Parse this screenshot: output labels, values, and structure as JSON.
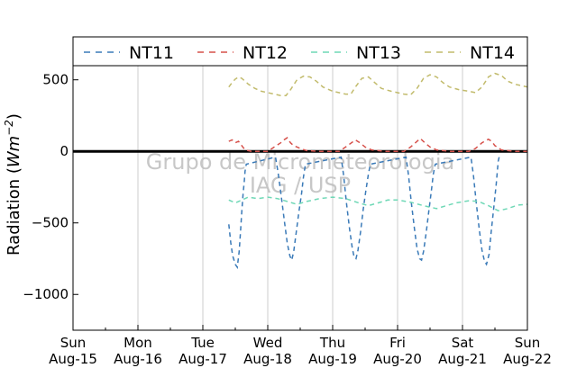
{
  "chart_data": {
    "type": "line",
    "ylabel_prefix": "Radiation (",
    "ylabel_unit": "Wm",
    "ylabel_exp": "−2",
    "ylabel_suffix": ")",
    "ylim": [
      -1250,
      800
    ],
    "xlim": [
      0,
      7
    ],
    "yticks": [
      {
        "value": 500,
        "label": "500"
      },
      {
        "value": 0,
        "label": "0"
      },
      {
        "value": -500,
        "label": "−500"
      },
      {
        "value": -1000,
        "label": "−1000"
      }
    ],
    "xticks": [
      {
        "value": 0,
        "day": "Sun",
        "date": "Aug-15"
      },
      {
        "value": 1,
        "day": "Mon",
        "date": "Aug-16"
      },
      {
        "value": 2,
        "day": "Tue",
        "date": "Aug-17"
      },
      {
        "value": 3,
        "day": "Wed",
        "date": "Aug-18"
      },
      {
        "value": 4,
        "day": "Thu",
        "date": "Aug-19"
      },
      {
        "value": 5,
        "day": "Fri",
        "date": "Aug-20"
      },
      {
        "value": 6,
        "day": "Sat",
        "date": "Aug-21"
      },
      {
        "value": 7,
        "day": "Sun",
        "date": "Aug-22"
      }
    ],
    "grid": "vertical",
    "zero_line": true,
    "legend_position": "top",
    "watermark": [
      "Grupo de Micrometeorologia",
      "IAG / USP"
    ],
    "series": [
      {
        "name": "NT11",
        "color": "#3a7ab8",
        "points": [
          [
            2.4,
            -510
          ],
          [
            2.43,
            -640
          ],
          [
            2.46,
            -730
          ],
          [
            2.5,
            -790
          ],
          [
            2.53,
            -810
          ],
          [
            2.56,
            -700
          ],
          [
            2.58,
            -560
          ],
          [
            2.6,
            -420
          ],
          [
            2.62,
            -300
          ],
          [
            2.64,
            -200
          ],
          [
            2.65,
            -140
          ],
          [
            2.67,
            -90
          ],
          [
            3.12,
            -40
          ],
          [
            3.16,
            -150
          ],
          [
            3.21,
            -320
          ],
          [
            3.26,
            -500
          ],
          [
            3.3,
            -640
          ],
          [
            3.34,
            -730
          ],
          [
            3.37,
            -760
          ],
          [
            3.4,
            -700
          ],
          [
            3.44,
            -560
          ],
          [
            3.48,
            -420
          ],
          [
            3.52,
            -300
          ],
          [
            3.55,
            -180
          ],
          [
            3.58,
            -90
          ],
          [
            4.13,
            -40
          ],
          [
            4.17,
            -170
          ],
          [
            4.21,
            -350
          ],
          [
            4.26,
            -540
          ],
          [
            4.3,
            -670
          ],
          [
            4.33,
            -740
          ],
          [
            4.36,
            -750
          ],
          [
            4.39,
            -690
          ],
          [
            4.43,
            -560
          ],
          [
            4.47,
            -410
          ],
          [
            4.51,
            -280
          ],
          [
            4.55,
            -160
          ],
          [
            4.58,
            -90
          ],
          [
            5.13,
            -40
          ],
          [
            5.17,
            -170
          ],
          [
            5.21,
            -350
          ],
          [
            5.26,
            -540
          ],
          [
            5.3,
            -680
          ],
          [
            5.34,
            -750
          ],
          [
            5.37,
            -760
          ],
          [
            5.4,
            -700
          ],
          [
            5.44,
            -570
          ],
          [
            5.48,
            -420
          ],
          [
            5.52,
            -280
          ],
          [
            5.55,
            -160
          ],
          [
            5.58,
            -90
          ],
          [
            6.13,
            -40
          ],
          [
            6.17,
            -170
          ],
          [
            6.21,
            -350
          ],
          [
            6.26,
            -550
          ],
          [
            6.3,
            -690
          ],
          [
            6.34,
            -770
          ],
          [
            6.37,
            -790
          ],
          [
            6.41,
            -720
          ],
          [
            6.44,
            -570
          ],
          [
            6.48,
            -400
          ],
          [
            6.52,
            -230
          ],
          [
            6.55,
            -70
          ],
          [
            6.57,
            -30
          ]
        ]
      },
      {
        "name": "NT12",
        "color": "#d6504a",
        "points": [
          [
            2.4,
            70
          ],
          [
            2.45,
            80
          ],
          [
            2.5,
            60
          ],
          [
            2.55,
            70
          ],
          [
            2.6,
            40
          ],
          [
            2.65,
            10
          ],
          [
            2.75,
            0
          ],
          [
            3.0,
            0
          ],
          [
            3.1,
            30
          ],
          [
            3.2,
            60
          ],
          [
            3.25,
            80
          ],
          [
            3.3,
            95
          ],
          [
            3.35,
            60
          ],
          [
            3.4,
            40
          ],
          [
            3.5,
            20
          ],
          [
            3.6,
            5
          ],
          [
            3.8,
            0
          ],
          [
            4.1,
            0
          ],
          [
            4.2,
            30
          ],
          [
            4.35,
            80
          ],
          [
            4.42,
            60
          ],
          [
            4.5,
            30
          ],
          [
            4.6,
            10
          ],
          [
            4.8,
            0
          ],
          [
            5.1,
            0
          ],
          [
            5.2,
            30
          ],
          [
            5.3,
            70
          ],
          [
            5.35,
            90
          ],
          [
            5.42,
            60
          ],
          [
            5.5,
            30
          ],
          [
            5.6,
            10
          ],
          [
            5.8,
            0
          ],
          [
            6.1,
            0
          ],
          [
            6.2,
            20
          ],
          [
            6.3,
            60
          ],
          [
            6.4,
            85
          ],
          [
            6.45,
            70
          ],
          [
            6.5,
            40
          ],
          [
            6.6,
            10
          ],
          [
            6.8,
            0
          ],
          [
            7.0,
            0
          ]
        ]
      },
      {
        "name": "NT13",
        "color": "#6fd8b6",
        "points": [
          [
            2.4,
            -340
          ],
          [
            2.5,
            -360
          ],
          [
            2.6,
            -340
          ],
          [
            2.7,
            -320
          ],
          [
            2.85,
            -330
          ],
          [
            3.0,
            -320
          ],
          [
            3.15,
            -330
          ],
          [
            3.3,
            -350
          ],
          [
            3.45,
            -370
          ],
          [
            3.6,
            -350
          ],
          [
            3.8,
            -330
          ],
          [
            4.0,
            -320
          ],
          [
            4.2,
            -330
          ],
          [
            4.4,
            -360
          ],
          [
            4.55,
            -380
          ],
          [
            4.7,
            -360
          ],
          [
            4.85,
            -340
          ],
          [
            5.0,
            -340
          ],
          [
            5.2,
            -355
          ],
          [
            5.4,
            -380
          ],
          [
            5.6,
            -400
          ],
          [
            5.75,
            -380
          ],
          [
            5.9,
            -360
          ],
          [
            6.1,
            -345
          ],
          [
            6.25,
            -350
          ],
          [
            6.4,
            -380
          ],
          [
            6.55,
            -415
          ],
          [
            6.7,
            -400
          ],
          [
            6.85,
            -375
          ],
          [
            7.0,
            -370
          ]
        ]
      },
      {
        "name": "NT14",
        "color": "#c2bb6c",
        "points": [
          [
            2.4,
            450
          ],
          [
            2.45,
            480
          ],
          [
            2.5,
            505
          ],
          [
            2.55,
            520
          ],
          [
            2.6,
            510
          ],
          [
            2.7,
            470
          ],
          [
            2.8,
            440
          ],
          [
            2.9,
            420
          ],
          [
            3.0,
            410
          ],
          [
            3.1,
            400
          ],
          [
            3.2,
            390
          ],
          [
            3.28,
            390
          ],
          [
            3.35,
            430
          ],
          [
            3.45,
            500
          ],
          [
            3.55,
            525
          ],
          [
            3.65,
            520
          ],
          [
            3.75,
            490
          ],
          [
            3.85,
            450
          ],
          [
            4.0,
            420
          ],
          [
            4.1,
            410
          ],
          [
            4.2,
            400
          ],
          [
            4.28,
            400
          ],
          [
            4.35,
            450
          ],
          [
            4.45,
            510
          ],
          [
            4.55,
            520
          ],
          [
            4.65,
            480
          ],
          [
            4.75,
            440
          ],
          [
            4.9,
            420
          ],
          [
            5.0,
            410
          ],
          [
            5.1,
            400
          ],
          [
            5.2,
            395
          ],
          [
            5.3,
            440
          ],
          [
            5.4,
            510
          ],
          [
            5.5,
            535
          ],
          [
            5.6,
            520
          ],
          [
            5.7,
            480
          ],
          [
            5.8,
            450
          ],
          [
            5.95,
            430
          ],
          [
            6.1,
            420
          ],
          [
            6.2,
            410
          ],
          [
            6.3,
            450
          ],
          [
            6.4,
            520
          ],
          [
            6.5,
            545
          ],
          [
            6.6,
            530
          ],
          [
            6.7,
            490
          ],
          [
            6.8,
            470
          ],
          [
            6.9,
            460
          ],
          [
            7.0,
            450
          ]
        ]
      }
    ]
  }
}
